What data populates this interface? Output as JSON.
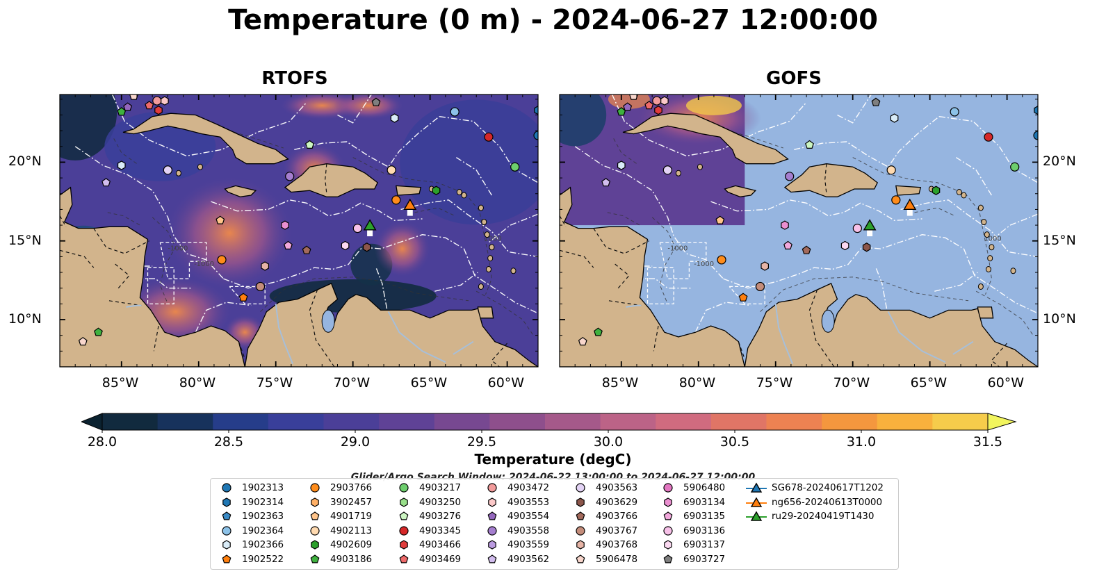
{
  "title": "Temperature (0 m) - 2024-06-27 12:00:00",
  "panels": [
    {
      "name": "RTOFS"
    },
    {
      "name": "GOFS"
    }
  ],
  "lon_ticks": [
    "85°W",
    "80°W",
    "75°W",
    "70°W",
    "65°W",
    "60°W"
  ],
  "lat_ticks": [
    "20°N",
    "15°N",
    "10°N"
  ],
  "extent": {
    "lon_min": -89,
    "lon_max": -58,
    "lat_min": 7,
    "lat_max": 24.3
  },
  "isobath_labels": [
    "-1000",
    "-1000",
    "1000"
  ],
  "colorbar": {
    "label": "Temperature (degC)",
    "min": 28.0,
    "max": 31.5,
    "step": 0.25,
    "ticks": [
      "28.0",
      "28.5",
      "29.0",
      "29.5",
      "30.0",
      "30.5",
      "31.0",
      "31.5"
    ],
    "colors": [
      "#112a3e",
      "#17325c",
      "#263d8a",
      "#393f9a",
      "#4b3f98",
      "#5f4296",
      "#774891",
      "#8e4f8c",
      "#a5598a",
      "#bc6387",
      "#d06b7f",
      "#e07566",
      "#ed8252",
      "#f4973e",
      "#f8b13d",
      "#f6cc4b"
    ],
    "under_color": "#0b2230",
    "over_color": "#f2f55e"
  },
  "search_window": "Glider/Argo Search Window: 2024-06-22 13:00:00 to 2024-06-27 12:00:00",
  "land_color": "#d2b48c",
  "gofs_ocean_color": "#96b5e0",
  "legend": [
    {
      "label": "1902313",
      "marker": "circle",
      "color": "#1f77b4"
    },
    {
      "label": "1902314",
      "marker": "hexagon",
      "color": "#1f77b4"
    },
    {
      "label": "1902363",
      "marker": "pentagon",
      "color": "#3a8ac5"
    },
    {
      "label": "1902364",
      "marker": "circle",
      "color": "#8cc2e8"
    },
    {
      "label": "1902366",
      "marker": "hexagon",
      "color": "#d9ecf8"
    },
    {
      "label": "1902522",
      "marker": "pentagon",
      "color": "#ff7f0e"
    },
    {
      "label": "2903766",
      "marker": "circle",
      "color": "#ff8c1a"
    },
    {
      "label": "3902457",
      "marker": "hexagon",
      "color": "#ffb066"
    },
    {
      "label": "4901719",
      "marker": "pentagon",
      "color": "#ffc48a"
    },
    {
      "label": "4902113",
      "marker": "circle",
      "color": "#ffdab0"
    },
    {
      "label": "4902609",
      "marker": "hexagon",
      "color": "#2ca02c"
    },
    {
      "label": "4903186",
      "marker": "pentagon",
      "color": "#3fb13f"
    },
    {
      "label": "4903217",
      "marker": "circle",
      "color": "#6dce6d"
    },
    {
      "label": "4903250",
      "marker": "hexagon",
      "color": "#98df8a"
    },
    {
      "label": "4903276",
      "marker": "pentagon",
      "color": "#ccf5c2"
    },
    {
      "label": "4903345",
      "marker": "circle",
      "color": "#d62728"
    },
    {
      "label": "4903466",
      "marker": "hexagon",
      "color": "#e03c3c"
    },
    {
      "label": "4903469",
      "marker": "pentagon",
      "color": "#ee6a6a"
    },
    {
      "label": "4903472",
      "marker": "circle",
      "color": "#f29b9b"
    },
    {
      "label": "4903553",
      "marker": "hexagon",
      "color": "#fbc8c8"
    },
    {
      "label": "4903554",
      "marker": "pentagon",
      "color": "#9467bd"
    },
    {
      "label": "4903558",
      "marker": "circle",
      "color": "#a57ecf"
    },
    {
      "label": "4903559",
      "marker": "hexagon",
      "color": "#bb9be0"
    },
    {
      "label": "4903562",
      "marker": "pentagon",
      "color": "#d2bdee"
    },
    {
      "label": "4903563",
      "marker": "circle",
      "color": "#e3d3f5"
    },
    {
      "label": "4903629",
      "marker": "hexagon",
      "color": "#8c564b"
    },
    {
      "label": "4903766",
      "marker": "pentagon",
      "color": "#a36a5c"
    },
    {
      "label": "4903767",
      "marker": "circle",
      "color": "#c48d7b"
    },
    {
      "label": "4903768",
      "marker": "hexagon",
      "color": "#e6b4a6"
    },
    {
      "label": "5906478",
      "marker": "pentagon",
      "color": "#f8d6cc"
    },
    {
      "label": "5906480",
      "marker": "circle",
      "color": "#e377c2"
    },
    {
      "label": "6903134",
      "marker": "hexagon",
      "color": "#ea8fd0"
    },
    {
      "label": "6903135",
      "marker": "pentagon",
      "color": "#f2a8dc"
    },
    {
      "label": "6903136",
      "marker": "circle",
      "color": "#f7c1e8"
    },
    {
      "label": "6903137",
      "marker": "hexagon",
      "color": "#fbd9f1"
    },
    {
      "label": "6903727",
      "marker": "pentagon",
      "color": "#7f7f7f"
    },
    {
      "label": "SG678-20240617T1202",
      "marker": "triangle",
      "color": "#1f77b4"
    },
    {
      "label": "ng656-20240613T0000",
      "marker": "triangle",
      "color": "#ff7f0e"
    },
    {
      "label": "ru29-20240419T1430",
      "marker": "triangle",
      "color": "#2ca02c"
    }
  ],
  "floats": [
    {
      "id": "1902314",
      "lon": -58.0,
      "lat": 23.3
    },
    {
      "id": "1902313",
      "lon": -58.0,
      "lat": 21.7
    },
    {
      "id": "1902364",
      "lon": -63.4,
      "lat": 23.2
    },
    {
      "id": "1902366",
      "lon": -67.3,
      "lat": 22.8
    },
    {
      "id": "6903727",
      "lon": -68.5,
      "lat": 23.8
    },
    {
      "id": "4903345",
      "lon": -61.2,
      "lat": 21.6
    },
    {
      "id": "4903217",
      "lon": -59.5,
      "lat": 19.7
    },
    {
      "id": "4902113",
      "lon": -67.5,
      "lat": 19.5
    },
    {
      "id": "4902609",
      "lon": -64.6,
      "lat": 18.2
    },
    {
      "id": "2903766",
      "lon": -67.2,
      "lat": 17.6
    },
    {
      "id": "4903472",
      "lon": -82.7,
      "lat": 23.9
    },
    {
      "id": "4903553",
      "lon": -82.2,
      "lat": 23.9
    },
    {
      "id": "4903469",
      "lon": -83.2,
      "lat": 23.6
    },
    {
      "id": "4903466",
      "lon": -82.6,
      "lat": 23.3
    },
    {
      "id": "4903186",
      "lon": -85.0,
      "lat": 23.2
    },
    {
      "id": "4903554",
      "lon": -84.6,
      "lat": 23.5
    },
    {
      "id": "5906478",
      "lon": -84.2,
      "lat": 24.2
    },
    {
      "id": "4903276",
      "lon": -72.8,
      "lat": 21.1
    },
    {
      "id": "1902366",
      "lon": -85.0,
      "lat": 19.8
    },
    {
      "id": "4903562",
      "lon": -86.0,
      "lat": 18.7
    },
    {
      "id": "4903563",
      "lon": -82.0,
      "lat": 19.5
    },
    {
      "id": "4903558",
      "lon": -74.1,
      "lat": 19.1
    },
    {
      "id": "4901719",
      "lon": -78.6,
      "lat": 16.3
    },
    {
      "id": "6903134",
      "lon": -74.4,
      "lat": 16.0
    },
    {
      "id": "6903135",
      "lon": -74.2,
      "lat": 14.7
    },
    {
      "id": "4903766",
      "lon": -73.0,
      "lat": 14.4
    },
    {
      "id": "4903768",
      "lon": -75.7,
      "lat": 13.4
    },
    {
      "id": "4903767",
      "lon": -76.0,
      "lat": 12.1
    },
    {
      "id": "2903766",
      "lon": -78.5,
      "lat": 13.8
    },
    {
      "id": "1902522",
      "lon": -77.1,
      "lat": 11.4
    },
    {
      "id": "6903136",
      "lon": -69.7,
      "lat": 15.8
    },
    {
      "id": "6903137",
      "lon": -70.5,
      "lat": 14.7
    },
    {
      "id": "4903629",
      "lon": -69.1,
      "lat": 14.6
    },
    {
      "id": "4903186",
      "lon": -86.5,
      "lat": 9.2
    },
    {
      "id": "5906478",
      "lon": -87.5,
      "lat": 8.6
    }
  ],
  "gliders": [
    {
      "id": "ng656-20240613T0000",
      "lon": -66.3,
      "lat": 17.3,
      "color": "#ff7f0e"
    },
    {
      "id": "ru29-20240419T1430",
      "lon": -68.9,
      "lat": 16.0,
      "color": "#2ca02c"
    }
  ]
}
